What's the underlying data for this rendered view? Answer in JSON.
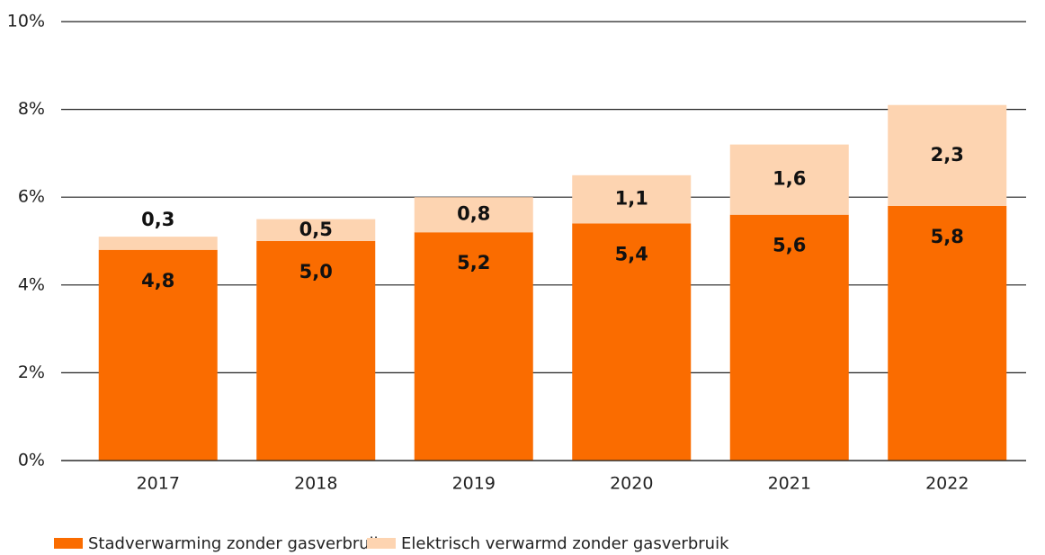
{
  "chart_data": {
    "type": "bar",
    "stacked": true,
    "categories": [
      "2017",
      "2018",
      "2019",
      "2020",
      "2021",
      "2022"
    ],
    "series": [
      {
        "name": "Stadverwarming zonder gasverbruik",
        "color": "#fa6c00",
        "values": [
          4.8,
          5.0,
          5.2,
          5.4,
          5.6,
          5.8
        ],
        "value_labels": [
          "4,8",
          "5,0",
          "5,2",
          "5,4",
          "5,6",
          "5,8"
        ]
      },
      {
        "name": "Elektrisch verwarmd zonder gasverbruik",
        "color": "#fdd4b1",
        "values": [
          0.3,
          0.5,
          0.8,
          1.1,
          1.6,
          2.3
        ],
        "value_labels": [
          "0,3",
          "0,5",
          "0,8",
          "1,1",
          "1,6",
          "2,3"
        ]
      }
    ],
    "ylim": [
      0,
      10
    ],
    "yticks": [
      {
        "value": 0,
        "label": "0%"
      },
      {
        "value": 2,
        "label": "2%"
      },
      {
        "value": 4,
        "label": "4%"
      },
      {
        "value": 6,
        "label": "6%"
      },
      {
        "value": 8,
        "label": "8%"
      },
      {
        "value": 10,
        "label": "10%"
      }
    ],
    "grid": true,
    "legend": "bottom"
  }
}
